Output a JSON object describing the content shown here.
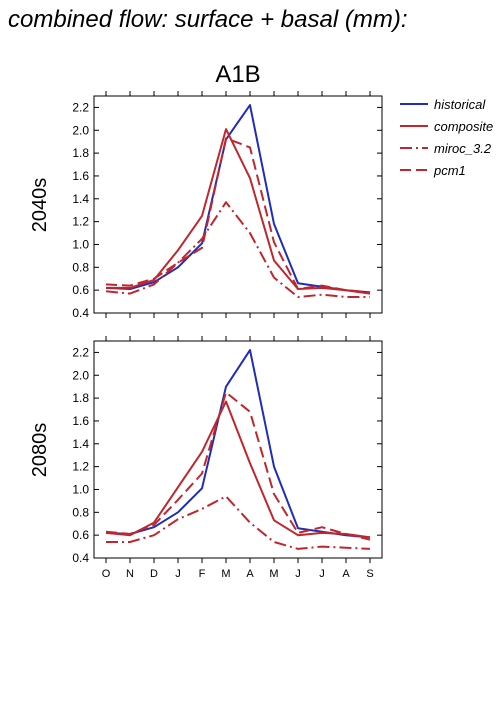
{
  "title": "combined flow: surface + basal (mm):",
  "colors": {
    "historical": "#1f2db8",
    "composite": "#c0262d",
    "axis": "#000000"
  },
  "legend": {
    "position": "top-right",
    "entries": [
      {
        "label": "historical",
        "color": "#1f2db8",
        "dash": "solid"
      },
      {
        "label": "composite",
        "color": "#c0262d",
        "dash": "solid"
      },
      {
        "label": "miroc_3.2",
        "color": "#c0262d",
        "dash": "dashdot"
      },
      {
        "label": "pcm1",
        "color": "#c0262d",
        "dash": "dashed"
      }
    ]
  },
  "chart_data": [
    {
      "type": "line",
      "title": "A1B",
      "ylabel": "2040s",
      "ylim": [
        0.4,
        2.3
      ],
      "yticks": [
        "0.4",
        "0.6",
        "0.8",
        "1.0",
        "1.2",
        "1.4",
        "1.6",
        "1.8",
        "2.0",
        "2.2"
      ],
      "categories": [
        "O",
        "N",
        "D",
        "J",
        "F",
        "M",
        "A",
        "M",
        "J",
        "J",
        "A",
        "S"
      ],
      "series": [
        {
          "name": "historical",
          "values": [
            0.62,
            0.61,
            0.67,
            0.8,
            1.01,
            1.92,
            2.22,
            1.18,
            0.66,
            0.63,
            0.6,
            0.58
          ]
        },
        {
          "name": "composite",
          "values": [
            0.62,
            0.62,
            0.69,
            0.95,
            1.25,
            2.01,
            1.58,
            0.86,
            0.61,
            0.62,
            0.6,
            0.57
          ]
        },
        {
          "name": "miroc_3.2",
          "values": [
            0.59,
            0.57,
            0.65,
            0.84,
            1.05,
            1.37,
            1.1,
            0.71,
            0.54,
            0.56,
            0.54,
            0.54
          ]
        },
        {
          "name": "pcm1",
          "values": [
            0.65,
            0.64,
            0.7,
            0.84,
            0.97,
            1.93,
            1.85,
            1.02,
            0.61,
            0.64,
            0.6,
            0.58
          ]
        }
      ]
    },
    {
      "type": "line",
      "title": "",
      "ylabel": "2080s",
      "ylim": [
        0.4,
        2.3
      ],
      "yticks": [
        "0.4",
        "0.6",
        "0.8",
        "1.0",
        "1.2",
        "1.4",
        "1.6",
        "1.8",
        "2.0",
        "2.2"
      ],
      "categories": [
        "O",
        "N",
        "D",
        "J",
        "F",
        "M",
        "A",
        "M",
        "J",
        "J",
        "A",
        "S"
      ],
      "series": [
        {
          "name": "historical",
          "values": [
            0.62,
            0.61,
            0.67,
            0.8,
            1.01,
            1.9,
            2.22,
            1.2,
            0.66,
            0.63,
            0.6,
            0.58
          ]
        },
        {
          "name": "composite",
          "values": [
            0.62,
            0.6,
            0.71,
            1.02,
            1.33,
            1.77,
            1.23,
            0.73,
            0.6,
            0.62,
            0.61,
            0.58
          ]
        },
        {
          "name": "miroc_3.2",
          "values": [
            0.54,
            0.54,
            0.6,
            0.74,
            0.83,
            0.94,
            0.71,
            0.54,
            0.48,
            0.5,
            0.49,
            0.48
          ]
        },
        {
          "name": "pcm1",
          "values": [
            0.63,
            0.61,
            0.69,
            0.91,
            1.14,
            1.85,
            1.68,
            0.96,
            0.62,
            0.67,
            0.61,
            0.56
          ]
        }
      ]
    }
  ]
}
